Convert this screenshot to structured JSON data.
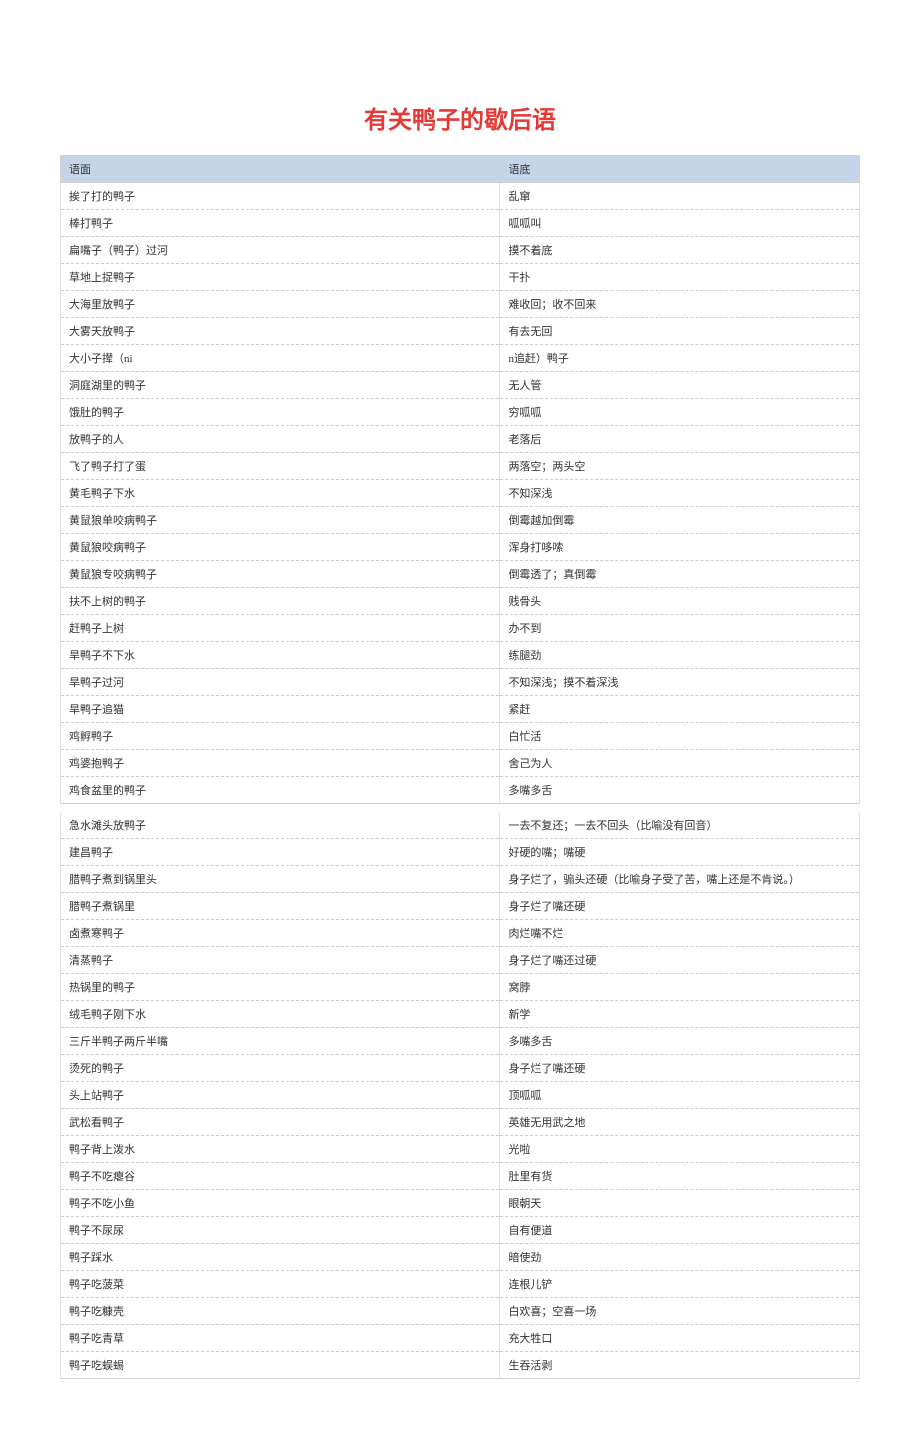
{
  "title": "有关鸭子的歇后语",
  "header": {
    "col1": "语面",
    "col2": "语底"
  },
  "table1": [
    {
      "a": "挨了打的鸭子",
      "b": "乱窜"
    },
    {
      "a": "棒打鸭子",
      "b": "呱呱叫"
    },
    {
      "a": "扁嘴子（鸭子）过河",
      "b": "摸不着底"
    },
    {
      "a": "草地上捉鸭子",
      "b": "干扑"
    },
    {
      "a": "大海里放鸭子",
      "b": "难收回；收不回来"
    },
    {
      "a": "大雾天放鸭子",
      "b": "有去无回"
    },
    {
      "a": "大小子撵（ni",
      "b": "n追赶）鸭子"
    },
    {
      "a": "洞庭湖里的鸭子",
      "b": "无人管"
    },
    {
      "a": "饿肚的鸭子",
      "b": "穷呱呱"
    },
    {
      "a": "放鸭子的人",
      "b": "老落后"
    },
    {
      "a": "飞了鸭子打了蛋",
      "b": "两落空；两头空"
    },
    {
      "a": "黄毛鸭子下水",
      "b": "不知深浅"
    },
    {
      "a": "黄鼠狼单咬病鸭子",
      "b": "倒霉越加倒霉"
    },
    {
      "a": "黄鼠狼咬病鸭子",
      "b": "浑身打哆嗦"
    },
    {
      "a": "黄鼠狼专咬病鸭子",
      "b": "倒霉透了；真倒霉"
    },
    {
      "a": "扶不上树的鸭子",
      "b": "贱骨头"
    },
    {
      "a": "赶鸭子上树",
      "b": "办不到"
    },
    {
      "a": "旱鸭子不下水",
      "b": "练腿劲"
    },
    {
      "a": "旱鸭子过河",
      "b": "不知深浅；摸不着深浅"
    },
    {
      "a": "旱鸭子追猫",
      "b": "紧赶"
    },
    {
      "a": "鸡孵鸭子",
      "b": "白忙活"
    },
    {
      "a": "鸡婆抱鸭子",
      "b": "舍己为人"
    },
    {
      "a": "鸡食盆里的鸭子",
      "b": "多嘴多舌"
    }
  ],
  "table2": [
    {
      "a": "急水滩头放鸭子",
      "b": "一去不复还；一去不回头（比喻没有回音）"
    },
    {
      "a": "建昌鸭子",
      "b": "好硬的嘴；嘴硬"
    },
    {
      "a": "腊鸭子煮到锅里头",
      "b": "身子烂了，骟头还硬（比喻身子受了苦，嘴上还是不肯说。）"
    },
    {
      "a": "腊鸭子煮锅里",
      "b": "身子烂了嘴还硬"
    },
    {
      "a": "卤煮寒鸭子",
      "b": "肉烂嘴不烂"
    },
    {
      "a": "清蒸鸭子",
      "b": "身子烂了嘴还过硬"
    },
    {
      "a": "热锅里的鸭子",
      "b": "窝脖"
    },
    {
      "a": "绒毛鸭子刚下水",
      "b": "新学"
    },
    {
      "a": "三斤半鸭子两斤半嘴",
      "b": "多嘴多舌"
    },
    {
      "a": "烫死的鸭子",
      "b": "身子烂了嘴还硬"
    },
    {
      "a": "头上站鸭子",
      "b": "顶呱呱"
    },
    {
      "a": "武松看鸭子",
      "b": "英雄无用武之地"
    },
    {
      "a": "鸭子背上泼水",
      "b": "光啦"
    },
    {
      "a": "鸭子不吃瘪谷",
      "b": "肚里有货"
    },
    {
      "a": "鸭子不吃小鱼",
      "b": "眼朝天"
    },
    {
      "a": "鸭子不尿尿",
      "b": "自有便道"
    },
    {
      "a": "鸭子踩水",
      "b": "暗使劲"
    },
    {
      "a": "鸭子吃菠菜",
      "b": "连根儿铲"
    },
    {
      "a": "鸭子吃糠壳",
      "b": "白欢喜；空喜一场"
    },
    {
      "a": "鸭子吃青草",
      "b": "充大牲口"
    },
    {
      "a": "鸭子吃蜈蜴",
      "b": "生吞活剥"
    }
  ]
}
